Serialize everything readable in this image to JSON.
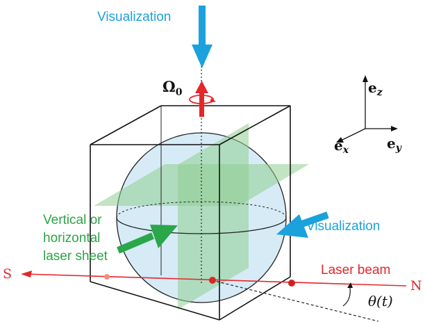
{
  "labels": {
    "visualization_top": "Visualization",
    "visualization_side": "Visualization",
    "laser_sheet_line1": "Vertical or",
    "laser_sheet_line2": "horizontal",
    "laser_sheet_line3": "laser sheet",
    "laser_beam": "Laser beam",
    "south": "S",
    "north": "N",
    "omega_symbol": "Ω",
    "omega_subscript": "0",
    "theta": "θ(t)"
  },
  "axes": {
    "e_z_main": "e",
    "e_z_sub": "z",
    "e_x_main": "e",
    "e_x_sub": "x",
    "e_y_main": "e",
    "e_y_sub": "y"
  },
  "colors": {
    "visualization_arrow": "#1ba1dc",
    "laser_sheet_arrow": "#2ba64a",
    "laser_beam": "#e5262b",
    "sphere_fill": "#cfe8f5",
    "sheet_fill": "#8fce8f",
    "outline": "#111111"
  }
}
